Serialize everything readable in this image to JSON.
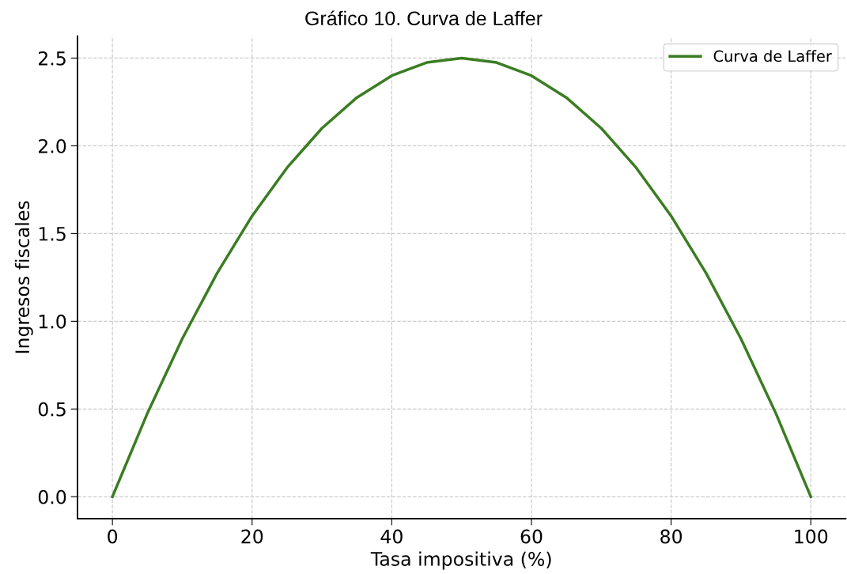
{
  "chart_data": {
    "type": "line",
    "title": "Gráfico 10. Curva de Laffer",
    "xlabel": "Tasa impositiva (%)",
    "ylabel": "Ingresos fiscales",
    "x": [
      0,
      5,
      10,
      15,
      20,
      25,
      30,
      35,
      40,
      45,
      50,
      55,
      60,
      65,
      70,
      75,
      80,
      85,
      90,
      95,
      100
    ],
    "series": [
      {
        "name": "Curva de Laffer",
        "color": "#3a7d22",
        "values": [
          0,
          0.475,
          0.9,
          1.275,
          1.6,
          1.875,
          2.1,
          2.275,
          2.4,
          2.475,
          2.5,
          2.475,
          2.4,
          2.275,
          2.1,
          1.875,
          1.6,
          1.275,
          0.9,
          0.475,
          0
        ]
      }
    ],
    "xlim": [
      -5,
      105
    ],
    "xticks": [
      0,
      20,
      40,
      60,
      80,
      100
    ],
    "ylim": [
      -0.125,
      2.625
    ],
    "yticks": [
      {
        "value": 0,
        "label": "0.0"
      },
      {
        "value": 0.5,
        "label": "0.5"
      },
      {
        "value": 1,
        "label": "1.0"
      },
      {
        "value": 1.5,
        "label": "1.5"
      },
      {
        "value": 2,
        "label": "2.0"
      },
      {
        "value": 2.5,
        "label": "2.5"
      }
    ],
    "grid": true,
    "legend": "top right",
    "marker": "none",
    "line_style": "solid"
  }
}
